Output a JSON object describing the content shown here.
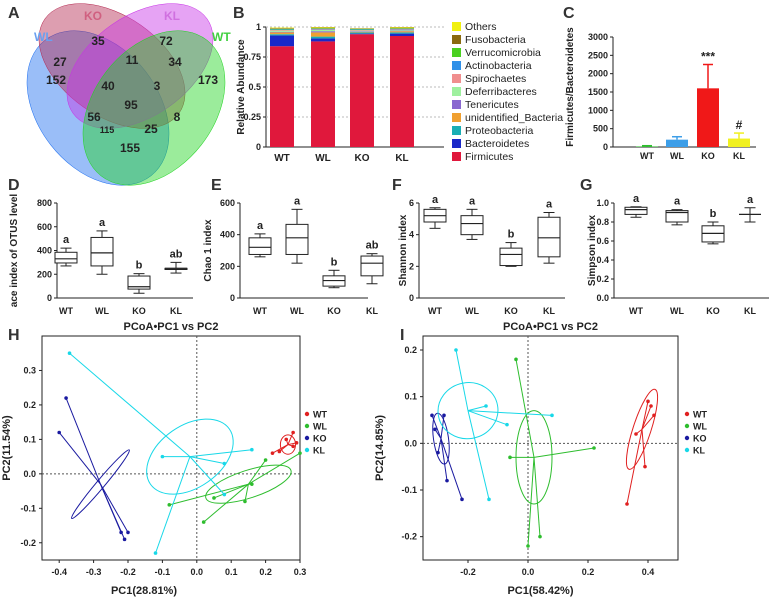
{
  "panel_labels": {
    "A": "A",
    "B": "B",
    "C": "C",
    "D": "D",
    "E": "E",
    "F": "F",
    "G": "G",
    "H": "H",
    "I": "I"
  },
  "colors": {
    "WT": "#e02020",
    "WL": "#2ebd2e",
    "KO": "#1a1aa0",
    "KL": "#18d8e8"
  },
  "chart_data": [
    {
      "id": "A",
      "type": "venn",
      "sets": [
        {
          "name": "WL",
          "color": "#1e6ff0"
        },
        {
          "name": "KO",
          "color": "#b42850"
        },
        {
          "name": "KL",
          "color": "#c832e6"
        },
        {
          "name": "WT",
          "color": "#22d422"
        }
      ],
      "regions": [
        "35",
        "72",
        "27",
        "11",
        "34",
        "152",
        "40",
        "3",
        "173",
        "95",
        "56",
        "8",
        "115",
        "25",
        "155"
      ]
    },
    {
      "id": "B",
      "type": "stacked_bar",
      "ylabel": "Relative Abundance",
      "ylim": [
        0,
        1
      ],
      "yticks": [
        "0",
        "0.25",
        "0.5",
        "0.75",
        "1"
      ],
      "categories": [
        "WT",
        "WL",
        "KO",
        "KL"
      ],
      "series": [
        {
          "name": "Firmicutes",
          "color": "#e0183c",
          "values": [
            0.84,
            0.88,
            0.94,
            0.925
          ]
        },
        {
          "name": "Bacteroidetes",
          "color": "#1a28c8",
          "values": [
            0.09,
            0.025,
            0.005,
            0.02
          ]
        },
        {
          "name": "Proteobacteria",
          "color": "#1aaeb4",
          "values": [
            0.01,
            0.015,
            0.01,
            0.01
          ]
        },
        {
          "name": "unidentified_Bacteria",
          "color": "#f0a030",
          "values": [
            0.015,
            0.035,
            0.005,
            0.01
          ]
        },
        {
          "name": "Tenericutes",
          "color": "#8a68d0",
          "values": [
            0.005,
            0.01,
            0.005,
            0.005
          ]
        },
        {
          "name": "Deferribacteres",
          "color": "#9ef09e",
          "values": [
            0.01,
            0.01,
            0.005,
            0.005
          ]
        },
        {
          "name": "Spirochaetes",
          "color": "#f08e8e",
          "values": [
            0.005,
            0.005,
            0.005,
            0.005
          ]
        },
        {
          "name": "Actinobacteria",
          "color": "#3090e8",
          "values": [
            0.005,
            0.005,
            0.005,
            0.005
          ]
        },
        {
          "name": "Verrucomicrobia",
          "color": "#4ad020",
          "values": [
            0.005,
            0.005,
            0.005,
            0.005
          ]
        },
        {
          "name": "Fusobacteria",
          "color": "#8a6a10",
          "values": [
            0.005,
            0.005,
            0.003,
            0.005
          ]
        },
        {
          "name": "Others",
          "color": "#f0f010",
          "values": [
            0.005,
            0.005,
            0.002,
            0.005
          ]
        }
      ],
      "legend_order": [
        "Others",
        "Fusobacteria",
        "Verrucomicrobia",
        "Actinobacteria",
        "Spirochaetes",
        "Deferribacteres",
        "Tenericutes",
        "unidentified_Bacteria",
        "Proteobacteria",
        "Bacteroidetes",
        "Firmicutes"
      ]
    },
    {
      "id": "C",
      "type": "bar",
      "ylabel": "Firmicutes/Bacteroidetes",
      "ylim": [
        0,
        3000
      ],
      "yticks": [
        "0",
        "500",
        "1000",
        "1500",
        "2000",
        "2500",
        "3000"
      ],
      "categories": [
        "WT",
        "WL",
        "KO",
        "KL"
      ],
      "values": [
        15,
        200,
        1600,
        230
      ],
      "errors": [
        20,
        80,
        650,
        150
      ],
      "colors": [
        "#2ebd2e",
        "#3d9ee8",
        "#f01818",
        "#f0f020"
      ],
      "annotations": [
        "",
        "",
        "***",
        "#"
      ]
    },
    {
      "id": "D",
      "type": "boxplot",
      "ylabel": "ace index of OTUS level",
      "ylim": [
        0,
        800
      ],
      "yticks": [
        "0",
        "200",
        "400",
        "600",
        "800"
      ],
      "categories": [
        "WT",
        "WL",
        "KO",
        "KL"
      ],
      "boxes": [
        {
          "min": 270,
          "q1": 295,
          "median": 330,
          "q3": 385,
          "max": 420
        },
        {
          "min": 200,
          "q1": 270,
          "median": 380,
          "q3": 510,
          "max": 565
        },
        {
          "min": 40,
          "q1": 75,
          "median": 95,
          "q3": 185,
          "max": 205
        },
        {
          "min": 210,
          "q1": 240,
          "median": 250,
          "q3": 250,
          "max": 300
        }
      ],
      "letters": [
        "a",
        "a",
        "b",
        "ab"
      ]
    },
    {
      "id": "E",
      "type": "boxplot",
      "ylabel": "Chao 1 index",
      "ylim": [
        0,
        600
      ],
      "yticks": [
        "0",
        "200",
        "400",
        "600"
      ],
      "categories": [
        "WT",
        "WL",
        "KO",
        "KL"
      ],
      "boxes": [
        {
          "min": 260,
          "q1": 275,
          "median": 320,
          "q3": 380,
          "max": 405
        },
        {
          "min": 220,
          "q1": 275,
          "median": 380,
          "q3": 465,
          "max": 560
        },
        {
          "min": 65,
          "q1": 75,
          "median": 110,
          "q3": 140,
          "max": 175
        },
        {
          "min": 90,
          "q1": 140,
          "median": 220,
          "q3": 265,
          "max": 280
        }
      ],
      "letters": [
        "a",
        "a",
        "b",
        "ab"
      ]
    },
    {
      "id": "F",
      "type": "boxplot",
      "ylabel": "Shannon index",
      "ylim": [
        0,
        6
      ],
      "yticks": [
        "0",
        "2",
        "4",
        "6"
      ],
      "categories": [
        "WT",
        "WL",
        "KO",
        "KL"
      ],
      "boxes": [
        {
          "min": 4.4,
          "q1": 4.8,
          "median": 5.2,
          "q3": 5.6,
          "max": 5.7
        },
        {
          "min": 3.7,
          "q1": 4.0,
          "median": 4.7,
          "q3": 5.2,
          "max": 5.6
        },
        {
          "min": 2.0,
          "q1": 2.05,
          "median": 2.75,
          "q3": 3.15,
          "max": 3.5
        },
        {
          "min": 2.2,
          "q1": 2.6,
          "median": 3.8,
          "q3": 5.1,
          "max": 5.4
        }
      ],
      "letters": [
        "a",
        "a",
        "b",
        "a"
      ]
    },
    {
      "id": "G",
      "type": "boxplot",
      "ylabel": "Simpson index",
      "ylim": [
        0,
        1.0
      ],
      "yticks": [
        "0.0",
        "0.2",
        "0.4",
        "0.6",
        "0.8",
        "1.0"
      ],
      "categories": [
        "WT",
        "WL",
        "KO",
        "KL"
      ],
      "boxes": [
        {
          "min": 0.85,
          "q1": 0.88,
          "median": 0.93,
          "q3": 0.955,
          "max": 0.96
        },
        {
          "min": 0.77,
          "q1": 0.8,
          "median": 0.9,
          "q3": 0.92,
          "max": 0.93
        },
        {
          "min": 0.57,
          "q1": 0.59,
          "median": 0.68,
          "q3": 0.76,
          "max": 0.8
        },
        {
          "min": 0.8,
          "q1": 0.88,
          "median": 0.88,
          "q3": 0.88,
          "max": 0.95
        }
      ],
      "letters": [
        "a",
        "a",
        "b",
        "a"
      ]
    },
    {
      "id": "H",
      "type": "scatter",
      "title": "PCoA•PC1 vs PC2",
      "xlabel": "PC1(28.81%)",
      "ylabel": "PC2(11.54%)",
      "xlim": [
        -0.45,
        0.3
      ],
      "ylim": [
        -0.25,
        0.4
      ],
      "xticks": [
        "-0.4",
        "-0.3",
        "-0.2",
        "-0.1",
        "0.0",
        "0.1",
        "0.2",
        "0.3"
      ],
      "yticks": [
        "-0.2",
        "-0.1",
        "0.0",
        "0.1",
        "0.2",
        "0.3"
      ],
      "legend": [
        "WT",
        "WL",
        "KO",
        "KL"
      ],
      "groups": [
        {
          "name": "WT",
          "centroid": [
            0.265,
            0.085
          ],
          "ellipse": {
            "rx": 0.022,
            "ry": 0.028,
            "angle": 0
          },
          "points": [
            [
              0.22,
              0.06
            ],
            [
              0.24,
              0.065
            ],
            [
              0.26,
              0.1
            ],
            [
              0.28,
              0.12
            ],
            [
              0.28,
              0.08
            ],
            [
              0.29,
              0.09
            ]
          ]
        },
        {
          "name": "WL",
          "centroid": [
            0.15,
            -0.03
          ],
          "ellipse": {
            "rx": 0.13,
            "ry": 0.04,
            "angle": -18
          },
          "points": [
            [
              -0.08,
              -0.09
            ],
            [
              0.05,
              -0.07
            ],
            [
              0.02,
              -0.14
            ],
            [
              0.14,
              -0.08
            ],
            [
              0.16,
              -0.03
            ],
            [
              0.2,
              0.04
            ],
            [
              0.3,
              0.06
            ]
          ]
        },
        {
          "name": "KO",
          "centroid": [
            -0.28,
            -0.03
          ],
          "ellipse": {
            "rx": 0.13,
            "ry": 0.012,
            "angle": -50
          },
          "points": [
            [
              -0.38,
              0.22
            ],
            [
              -0.4,
              0.12
            ],
            [
              -0.22,
              -0.17
            ],
            [
              -0.21,
              -0.19
            ],
            [
              -0.2,
              -0.17
            ]
          ]
        },
        {
          "name": "KL",
          "centroid": [
            -0.02,
            0.05
          ],
          "ellipse": {
            "rx": 0.14,
            "ry": 0.09,
            "angle": -35
          },
          "points": [
            [
              -0.37,
              0.35
            ],
            [
              -0.12,
              -0.23
            ],
            [
              -0.1,
              0.05
            ],
            [
              0.08,
              -0.06
            ],
            [
              0.08,
              0.03
            ],
            [
              0.16,
              0.07
            ]
          ]
        }
      ]
    },
    {
      "id": "I",
      "type": "scatter",
      "title": "PCoA•PC1 vs PC2",
      "xlabel": "PC1(58.42%)",
      "ylabel": "PC2(14.85%)",
      "xlim": [
        -0.35,
        0.5
      ],
      "ylim": [
        -0.25,
        0.23
      ],
      "xticks": [
        "-0.2",
        "0.0",
        "0.2",
        "0.4"
      ],
      "yticks": [
        "-0.2",
        "-0.1",
        "0.0",
        "0.1",
        "0.2"
      ],
      "legend": [
        "WT",
        "WL",
        "KO",
        "KL"
      ],
      "groups": [
        {
          "name": "WT",
          "centroid": [
            0.38,
            0.03
          ],
          "ellipse": {
            "rx": 0.03,
            "ry": 0.09,
            "angle": 18
          },
          "points": [
            [
              0.33,
              -0.13
            ],
            [
              0.36,
              0.02
            ],
            [
              0.4,
              0.09
            ],
            [
              0.41,
              0.08
            ],
            [
              0.39,
              -0.05
            ],
            [
              0.42,
              0.06
            ]
          ]
        },
        {
          "name": "WL",
          "centroid": [
            0.02,
            -0.03
          ],
          "ellipse": {
            "rx": 0.06,
            "ry": 0.1,
            "angle": 0
          },
          "points": [
            [
              -0.06,
              -0.03
            ],
            [
              -0.04,
              0.18
            ],
            [
              0.0,
              -0.22
            ],
            [
              0.04,
              -0.2
            ],
            [
              0.22,
              -0.01
            ]
          ]
        },
        {
          "name": "KO",
          "centroid": [
            -0.29,
            0.01
          ],
          "ellipse": {
            "rx": 0.025,
            "ry": 0.055,
            "angle": -8
          },
          "points": [
            [
              -0.31,
              0.03
            ],
            [
              -0.32,
              0.06
            ],
            [
              -0.28,
              0.06
            ],
            [
              -0.3,
              -0.02
            ],
            [
              -0.22,
              -0.12
            ],
            [
              -0.27,
              -0.08
            ]
          ]
        },
        {
          "name": "KL",
          "centroid": [
            -0.2,
            0.07
          ],
          "ellipse": {
            "rx": 0.1,
            "ry": 0.06,
            "angle": -10
          },
          "points": [
            [
              -0.24,
              0.2
            ],
            [
              -0.14,
              0.08
            ],
            [
              -0.13,
              -0.12
            ],
            [
              -0.07,
              0.04
            ],
            [
              0.08,
              0.06
            ]
          ]
        }
      ]
    }
  ]
}
